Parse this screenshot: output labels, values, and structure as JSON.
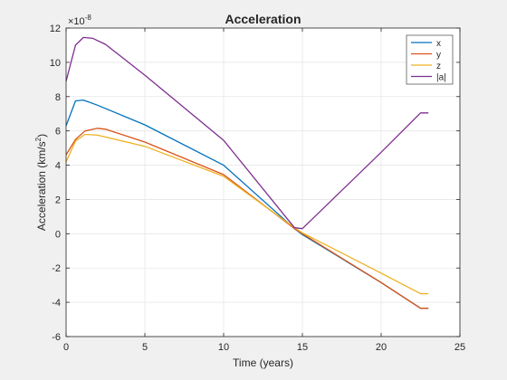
{
  "chart_data": {
    "type": "line",
    "title": "Acceleration",
    "xlabel": "Time (years)",
    "ylabel_main": "Acceleration (km/s",
    "ylabel_sup": "2",
    "ylabel_tail": ")",
    "exponent_prefix": "×10",
    "exponent_value": "-8",
    "xlim": [
      0,
      25
    ],
    "ylim": [
      -6,
      12
    ],
    "xticks": [
      0,
      5,
      10,
      15,
      20,
      25
    ],
    "yticks": [
      -6,
      -4,
      -2,
      0,
      2,
      4,
      6,
      8,
      10,
      12
    ],
    "grid": true,
    "legend_position": "top-right",
    "series": [
      {
        "name": "x",
        "color": "#0072BD",
        "points": [
          [
            0,
            6.3
          ],
          [
            0.6,
            7.75
          ],
          [
            1.1,
            7.8
          ],
          [
            2,
            7.5
          ],
          [
            5,
            6.35
          ],
          [
            10,
            4.0
          ],
          [
            14.5,
            0.3
          ],
          [
            15,
            -0.05
          ],
          [
            20,
            -2.85
          ],
          [
            22.5,
            -4.35
          ],
          [
            23,
            -4.35
          ]
        ]
      },
      {
        "name": "y",
        "color": "#D95319",
        "points": [
          [
            0,
            4.6
          ],
          [
            0.6,
            5.5
          ],
          [
            1.2,
            6.0
          ],
          [
            2,
            6.15
          ],
          [
            2.5,
            6.1
          ],
          [
            5,
            5.35
          ],
          [
            10,
            3.45
          ],
          [
            14.5,
            0.3
          ],
          [
            15,
            0.0
          ],
          [
            20,
            -2.85
          ],
          [
            22.5,
            -4.35
          ],
          [
            23,
            -4.35
          ]
        ]
      },
      {
        "name": "z",
        "color": "#EDB120",
        "points": [
          [
            0,
            4.2
          ],
          [
            0.6,
            5.4
          ],
          [
            1.2,
            5.8
          ],
          [
            2,
            5.75
          ],
          [
            5,
            5.1
          ],
          [
            10,
            3.35
          ],
          [
            14.5,
            0.35
          ],
          [
            15,
            0.05
          ],
          [
            20,
            -2.3
          ],
          [
            22.5,
            -3.5
          ],
          [
            23,
            -3.5
          ]
        ]
      },
      {
        "name": "|a|",
        "color": "#7E2F8E",
        "points": [
          [
            0,
            8.9
          ],
          [
            0.6,
            11.0
          ],
          [
            1.1,
            11.45
          ],
          [
            1.7,
            11.4
          ],
          [
            2.5,
            11.05
          ],
          [
            5,
            9.25
          ],
          [
            10,
            5.45
          ],
          [
            14.5,
            0.35
          ],
          [
            15,
            0.3
          ],
          [
            20,
            4.75
          ],
          [
            22.5,
            7.05
          ],
          [
            23,
            7.05
          ]
        ]
      }
    ]
  }
}
